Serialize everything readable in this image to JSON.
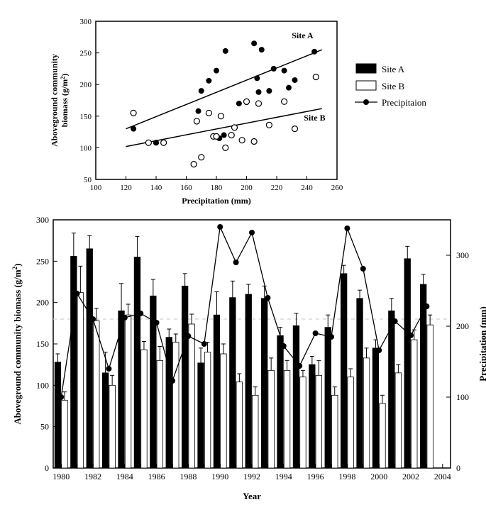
{
  "main_chart": {
    "type": "bar+line",
    "title": "",
    "ylabel_left": "Aboveground community biomass (g/m²)",
    "ylabel_right": "Precipitation (mm)",
    "xlabel": "Year",
    "label_fontsize": 13,
    "tick_fontsize": 12,
    "background_color": "#ffffff",
    "grid_color": "#dcdcdc",
    "dashed_ref_line_color": "#d0d0d0",
    "dashed_ref_value": 210,
    "years": [
      1980,
      1981,
      1982,
      1983,
      1984,
      1985,
      1986,
      1987,
      1988,
      1989,
      1990,
      1991,
      1992,
      1993,
      1994,
      1995,
      1996,
      1997,
      1998,
      1999,
      2000,
      2001,
      2002,
      2003
    ],
    "xtick_labels": [
      "1980",
      "",
      "1982",
      "",
      "1984",
      "",
      "1986",
      "",
      "1988",
      "",
      "1990",
      "",
      "1992",
      "",
      "1994",
      "",
      "1996",
      "",
      "1998",
      "",
      "2000",
      "",
      "2002",
      "",
      "2004"
    ],
    "x_min": 1980,
    "x_max": 2004,
    "y_left_min": 0,
    "y_left_max": 300,
    "y_left_ticks": [
      0,
      50,
      100,
      150,
      200,
      250,
      300
    ],
    "y_right_min": 0,
    "y_right_max": 350,
    "y_right_ticks": [
      0,
      100,
      200,
      300
    ],
    "site_a": {
      "label": "Site A",
      "bar_color": "#000000",
      "values": [
        128,
        256,
        265,
        115,
        190,
        255,
        208,
        158,
        220,
        127,
        185,
        206,
        210,
        205,
        160,
        172,
        125,
        170,
        235,
        205,
        145,
        190,
        253,
        222
      ],
      "err": [
        10,
        28,
        16,
        25,
        33,
        25,
        20,
        10,
        15,
        18,
        28,
        20,
        12,
        15,
        10,
        15,
        10,
        15,
        10,
        10,
        10,
        15,
        15,
        12
      ]
    },
    "site_b": {
      "label": "Site B",
      "bar_color": "#ffffff",
      "bar_border": "#000000",
      "values": [
        82,
        212,
        178,
        100,
        185,
        143,
        130,
        152,
        174,
        140,
        138,
        104,
        88,
        118,
        118,
        110,
        112,
        88,
        110,
        133,
        78,
        115,
        155,
        173
      ],
      "err": [
        10,
        32,
        15,
        12,
        13,
        10,
        17,
        10,
        12,
        12,
        12,
        10,
        10,
        15,
        12,
        8,
        18,
        10,
        10,
        12,
        10,
        10,
        12,
        12
      ]
    },
    "precipitation": {
      "label": "Precipitaion",
      "marker_color": "#000000",
      "line_color": "#000000",
      "values": [
        100,
        246,
        210,
        140,
        212,
        218,
        205,
        123,
        186,
        175,
        340,
        290,
        332,
        240,
        172,
        144,
        190,
        185,
        338,
        281,
        166,
        207,
        187,
        228
      ]
    },
    "legend": {
      "text_color": "#000000"
    }
  },
  "inset_chart": {
    "type": "scatter",
    "xlabel": "Precipitation (mm)",
    "ylabel": "Aboveground community biomass (g/m²)",
    "label_fontsize": 12,
    "tick_fontsize": 11,
    "x_min": 100,
    "x_max": 260,
    "x_ticks": [
      100,
      120,
      140,
      160,
      180,
      200,
      220,
      240,
      260
    ],
    "y_min": 50,
    "y_max": 300,
    "y_ticks": [
      50,
      100,
      150,
      200,
      250,
      300
    ],
    "site_a": {
      "label": "Site A",
      "marker": "filled-circle",
      "color": "#000000",
      "points": [
        [
          125,
          130
        ],
        [
          140,
          108
        ],
        [
          140,
          108
        ],
        [
          167,
          142
        ],
        [
          168,
          158
        ],
        [
          170,
          190
        ],
        [
          175,
          206
        ],
        [
          180,
          222
        ],
        [
          182,
          115
        ],
        [
          186,
          253
        ],
        [
          185,
          120
        ],
        [
          195,
          170
        ],
        [
          200,
          172
        ],
        [
          205,
          265
        ],
        [
          207,
          210
        ],
        [
          208,
          188
        ],
        [
          210,
          255
        ],
        [
          215,
          190
        ],
        [
          218,
          225
        ],
        [
          225,
          222
        ],
        [
          228,
          195
        ],
        [
          232,
          207
        ],
        [
          245,
          252
        ]
      ],
      "fit_line": {
        "x1": 120,
        "y1": 130,
        "x2": 250,
        "y2": 255
      }
    },
    "site_b": {
      "label": "Site B",
      "marker": "open-circle",
      "color": "#000000",
      "points": [
        [
          125,
          155
        ],
        [
          135,
          108
        ],
        [
          145,
          108
        ],
        [
          165,
          74
        ],
        [
          167,
          142
        ],
        [
          170,
          85
        ],
        [
          175,
          155
        ],
        [
          178,
          118
        ],
        [
          180,
          118
        ],
        [
          183,
          150
        ],
        [
          186,
          100
        ],
        [
          190,
          120
        ],
        [
          192,
          132
        ],
        [
          197,
          112
        ],
        [
          200,
          173
        ],
        [
          205,
          110
        ],
        [
          208,
          170
        ],
        [
          215,
          136
        ],
        [
          225,
          173
        ],
        [
          232,
          130
        ],
        [
          246,
          212
        ]
      ],
      "fit_line": {
        "x1": 120,
        "y1": 102,
        "x2": 250,
        "y2": 162
      }
    }
  }
}
